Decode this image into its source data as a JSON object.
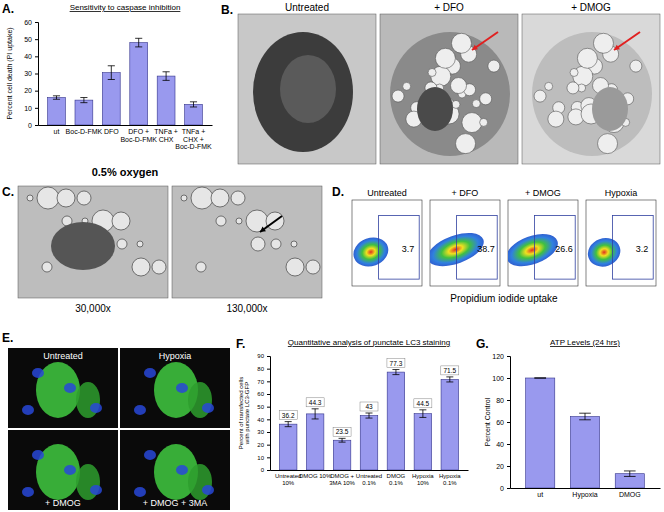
{
  "chart_data": [
    {
      "type": "bar",
      "panel_label": "A.",
      "title": "Sensitivity to caspase inhibition",
      "subtitle": "0.5% oxygen",
      "y_label": "Percent cell death (PI uptake)",
      "categories": [
        "ut",
        "Boc-D-FMK",
        "DFO",
        "DFO + Boc-D-FMK",
        "TNFa + CHX",
        "TNFa + CHX + Boc-D-FMK"
      ],
      "values": [
        16,
        14.5,
        30.5,
        48,
        28.5,
        12
      ],
      "errors": [
        1,
        1.5,
        4,
        2.5,
        2.5,
        1.5
      ],
      "color": "#9999ee",
      "ylim": [
        0,
        60
      ],
      "yticks": [
        0,
        10,
        20,
        30,
        40,
        50,
        60
      ],
      "grid": false
    },
    {
      "type": "bar",
      "panel_label": "F.",
      "title": "Quantitative analysis of punctate LC3 staining",
      "y_label": "Percent of transfected cells with punctate LC3-GFP",
      "categories": [
        "Untreated 10%",
        "DMOG 10%",
        "DMOG + 3MA 10%",
        "Untreated 0.1%",
        "DMOG 0.1%",
        "Hypoxia 10%",
        "Hypoxia 0.1%"
      ],
      "values": [
        36.2,
        44.3,
        23.5,
        43.0,
        77.3,
        44.5,
        71.5
      ],
      "errors": [
        2,
        4,
        1.5,
        2,
        2,
        3,
        2
      ],
      "data_labels": true,
      "color": "#9999ee",
      "ylim": [
        0,
        90
      ],
      "yticks": [
        0,
        10,
        20,
        30,
        40,
        50,
        60,
        70,
        80,
        90
      ],
      "grid": false
    },
    {
      "type": "bar",
      "panel_label": "G.",
      "title": "ATP Levels (24 hrs)",
      "y_label": "Percent Control",
      "categories": [
        "ut",
        "Hypoxia",
        "DMOG"
      ],
      "values": [
        100,
        65,
        13
      ],
      "errors": [
        0,
        3,
        2.5
      ],
      "color": "#9999ee",
      "ylim": [
        0,
        120
      ],
      "yticks": [
        0,
        20,
        40,
        60,
        80,
        100,
        120
      ],
      "grid": false
    }
  ],
  "images": {
    "B": {
      "label": "B.",
      "captions": [
        "Untreated",
        "+ DFO",
        "+ DMOG"
      ]
    },
    "C": {
      "label": "C.",
      "captions": [
        "30,000x",
        "130,000x"
      ]
    },
    "D": {
      "label": "D.",
      "x_label": "Propidium iodide uptake",
      "plots": [
        {
          "title": "Untreated",
          "gate_percent": 3.7
        },
        {
          "title": "+ DFO",
          "gate_percent": 38.7
        },
        {
          "title": "+ DMOG",
          "gate_percent": 26.6
        },
        {
          "title": "Hypoxia",
          "gate_percent": 3.2
        }
      ]
    },
    "E": {
      "label": "E.",
      "captions": [
        "Untreated",
        "Hypoxia",
        "+ DMOG",
        "+ DMOG + 3MA"
      ]
    }
  }
}
